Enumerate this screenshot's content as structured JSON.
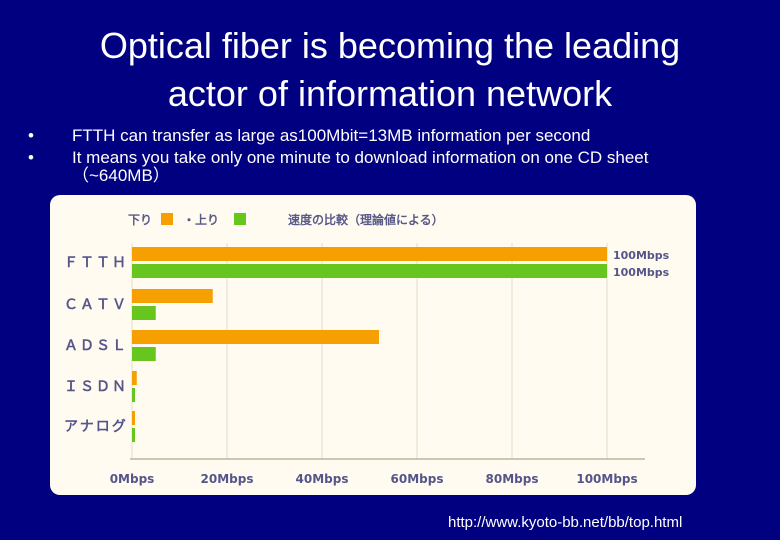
{
  "slide": {
    "title_line1": "Optical fiber is becoming the leading",
    "title_line2": "actor of information network",
    "bullets": [
      "FTTH can transfer as large as100Mbit=13MB information per second",
      "It means you take only one minute to download information on one CD sheet",
      "（~640MB）"
    ],
    "bullet_glyph": "•",
    "source_url": "http://www.kyoto-bb.net/bb/top.html"
  },
  "colors": {
    "background": "#000080",
    "down": "#f5a000",
    "up": "#66c61e",
    "chart_bg": "#fffbf0",
    "label": "#55558a"
  },
  "chart_data": {
    "type": "bar",
    "orientation": "horizontal",
    "title": "速度の比較（理論値による）",
    "categories": [
      "FTTH",
      "CATV",
      "ADSL",
      "ISDN",
      "アナログ"
    ],
    "category_display": [
      "ＦＴＴＨ",
      "ＣＡＴＶ",
      "ＡＤＳＬ",
      "ＩＳＤＮ",
      "アナログ"
    ],
    "series": [
      {
        "name": "下り",
        "color": "#f5a000",
        "values": [
          100,
          17,
          52,
          1,
          0.5
        ]
      },
      {
        "name": "上り",
        "color": "#66c61e",
        "values": [
          100,
          5,
          5,
          0.5,
          0.5
        ]
      }
    ],
    "legend": {
      "down_label": "下り",
      "up_label": "・上り",
      "placement": "top-left"
    },
    "data_labels": [
      "100Mbps",
      "100Mbps"
    ],
    "xlim": [
      0,
      100
    ],
    "xticks": [
      "0Mbps",
      "20Mbps",
      "40Mbps",
      "60Mbps",
      "80Mbps",
      "100Mbps"
    ],
    "grid": true
  }
}
